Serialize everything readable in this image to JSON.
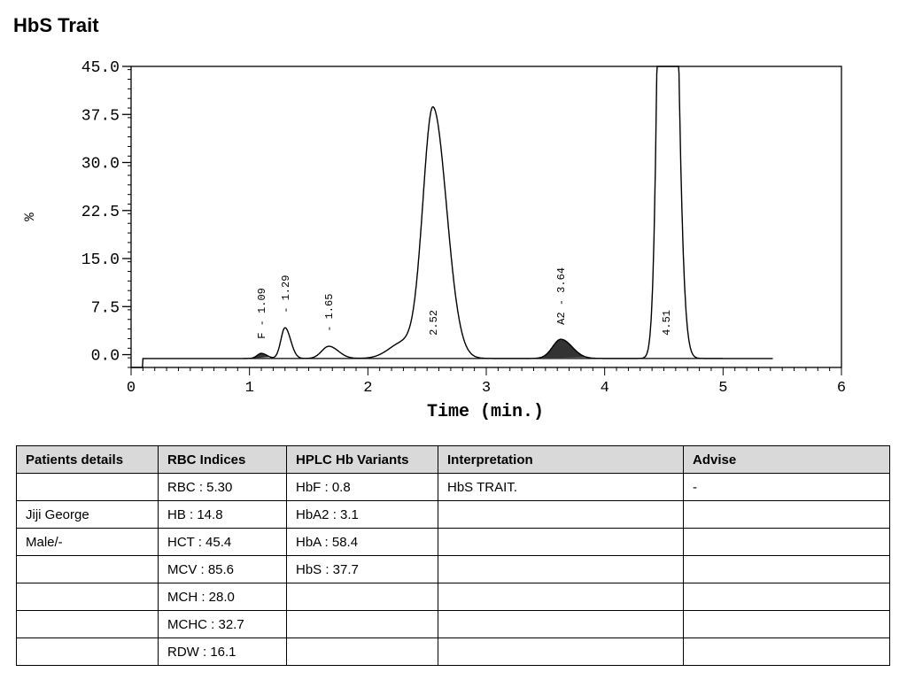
{
  "page": {
    "title": "HbS Trait"
  },
  "chart_data": {
    "type": "line",
    "xlabel": "Time (min.)",
    "ylabel": "%",
    "xlim": [
      0,
      6
    ],
    "ylim": [
      -2,
      45
    ],
    "x_ticks": [
      "0",
      "1",
      "2",
      "3",
      "4",
      "5",
      "6"
    ],
    "y_ticks": [
      "45.0",
      "37.5",
      "30.0",
      "22.5",
      "15.0",
      "7.5",
      "0.0"
    ],
    "y_tick_values": [
      45.0,
      37.5,
      30.0,
      22.5,
      15.0,
      7.5,
      0.0
    ],
    "grid": false,
    "peaks": [
      {
        "time": 1.1,
        "height": 0.8,
        "label": "F - 1.09",
        "shaded": true
      },
      {
        "time": 1.3,
        "height": 4.8,
        "label": "- 1.29",
        "shaded": false
      },
      {
        "time": 1.67,
        "height": 1.9,
        "label": "- 1.65",
        "shaded": false
      },
      {
        "time": 2.55,
        "height": 39.0,
        "label": "2.52",
        "shaded": false
      },
      {
        "time": 3.63,
        "height": 3.0,
        "label": "A2 - 3.64",
        "shaded": true
      },
      {
        "time": 4.52,
        "height": 45.0,
        "label": "4.51",
        "shaded": false
      }
    ]
  },
  "table": {
    "headers": [
      "Patients details",
      "RBC Indices",
      "HPLC Hb Variants",
      "Interpretation",
      "Advise"
    ],
    "rows": [
      [
        "",
        "RBC : 5.30",
        "HbF : 0.8",
        "HbS TRAIT.",
        "-"
      ],
      [
        "Jiji George",
        "HB : 14.8",
        "HbA2 : 3.1",
        "",
        ""
      ],
      [
        "Male/-",
        "HCT : 45.4",
        "HbA : 58.4",
        "",
        ""
      ],
      [
        "",
        "MCV : 85.6",
        "HbS : 37.7",
        "",
        ""
      ],
      [
        "",
        "MCH : 28.0",
        "",
        "",
        ""
      ],
      [
        "",
        "MCHC : 32.7",
        "",
        "",
        ""
      ],
      [
        "",
        "RDW : 16.1",
        "",
        "",
        ""
      ]
    ]
  }
}
